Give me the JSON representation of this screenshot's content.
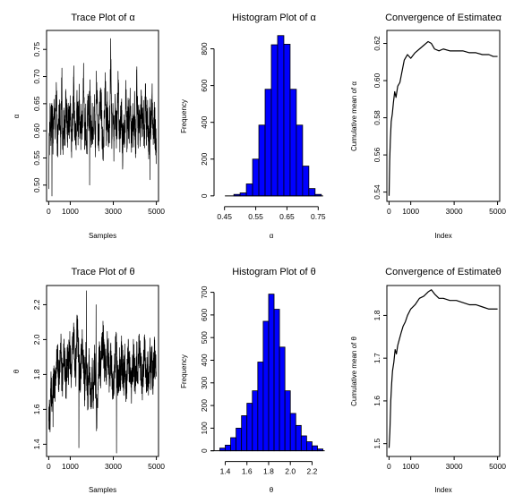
{
  "figure": {
    "layout": "2x3 grid of MCMC diagnostic plots"
  },
  "chart_data": [
    {
      "id": "trace-alpha",
      "type": "line",
      "title": "Trace Plot of α",
      "xlabel": "Samples",
      "ylabel": "α",
      "xlim": [
        -100,
        5100
      ],
      "ylim": [
        0.47,
        0.785
      ],
      "xticks": [
        0,
        1000,
        3000,
        5000
      ],
      "xtick_labels": [
        "0",
        "1000",
        "3000",
        "5000"
      ],
      "yticks": [
        0.5,
        0.55,
        0.6,
        0.65,
        0.7,
        0.75
      ],
      "ytick_labels": [
        "0.50",
        "0.55",
        "0.60",
        "0.65",
        "0.70",
        "0.75"
      ],
      "series": [
        {
          "color": "#000000",
          "x_start": 1,
          "x_end": 5000,
          "values": [
            0.53,
            0.62,
            0.6,
            0.66,
            0.58,
            0.63,
            0.6,
            0.68,
            0.57,
            0.61,
            0.64,
            0.59,
            0.7,
            0.56,
            0.62,
            0.6,
            0.67,
            0.58,
            0.63,
            0.61,
            0.65,
            0.56,
            0.62,
            0.69,
            0.6,
            0.58,
            0.64,
            0.61,
            0.66,
            0.57,
            0.63,
            0.6,
            0.72,
            0.59,
            0.62,
            0.55,
            0.65,
            0.61,
            0.67,
            0.58,
            0.62,
            0.6,
            0.64,
            0.57,
            0.7,
            0.61,
            0.59,
            0.63,
            0.66,
            0.6,
            0.56,
            0.62,
            0.68,
            0.6,
            0.64,
            0.58,
            0.61,
            0.73,
            0.6,
            0.63,
            0.57,
            0.65,
            0.6,
            0.62,
            0.69,
            0.58,
            0.61,
            0.64,
            0.56,
            0.62,
            0.6,
            0.67,
            0.59,
            0.63,
            0.61,
            0.66,
            0.58,
            0.62,
            0.6,
            0.64,
            0.57,
            0.7,
            0.6,
            0.62,
            0.59,
            0.65,
            0.61,
            0.63,
            0.58,
            0.67,
            0.6,
            0.62,
            0.56,
            0.64,
            0.61,
            0.68,
            0.59,
            0.62,
            0.6,
            0.57
          ],
          "extremes": [
            {
              "x": 150,
              "y": 0.48
            },
            {
              "x": 2880,
              "y": 0.77
            },
            {
              "x": 1900,
              "y": 0.5
            },
            {
              "x": 4700,
              "y": 0.51
            }
          ]
        }
      ]
    },
    {
      "id": "hist-alpha",
      "type": "bar",
      "title": "Histogram Plot of α",
      "xlabel": "α",
      "ylabel": "Frequency",
      "xlim": [
        0.428,
        0.772
      ],
      "ylim": [
        -30,
        900
      ],
      "xticks": [
        0.45,
        0.55,
        0.65,
        0.75
      ],
      "xtick_labels": [
        "0.45",
        "0.55",
        "0.65",
        "0.75"
      ],
      "yticks": [
        0,
        200,
        400,
        600,
        800
      ],
      "ytick_labels": [
        "0",
        "200",
        "400",
        "600",
        "800"
      ],
      "bin_width": 0.02,
      "bin_starts": [
        0.48,
        0.5,
        0.52,
        0.54,
        0.56,
        0.58,
        0.6,
        0.62,
        0.64,
        0.66,
        0.68,
        0.7,
        0.72,
        0.74
      ],
      "values": [
        8,
        16,
        65,
        200,
        385,
        580,
        822,
        872,
        825,
        580,
        385,
        162,
        40,
        8
      ],
      "bar_color": "#0000ff"
    },
    {
      "id": "conv-alpha",
      "type": "line",
      "title": "Convergence of Estimateα",
      "xlabel": "Index",
      "ylabel": "Cumulative mean of α",
      "xlim": [
        -100,
        5100
      ],
      "ylim": [
        0.535,
        0.627
      ],
      "xticks": [
        0,
        1000,
        3000,
        5000
      ],
      "xtick_labels": [
        "0",
        "1000",
        "3000",
        "5000"
      ],
      "yticks": [
        0.54,
        0.56,
        0.58,
        0.6,
        0.62
      ],
      "ytick_labels": [
        "0.54",
        "0.56",
        "0.58",
        "0.60",
        "0.62"
      ],
      "series": [
        {
          "color": "#000000",
          "x": [
            1,
            30,
            60,
            100,
            150,
            200,
            260,
            320,
            400,
            500,
            600,
            700,
            850,
            1000,
            1200,
            1400,
            1600,
            1800,
            1950,
            2100,
            2300,
            2500,
            2800,
            3100,
            3400,
            3700,
            4000,
            4300,
            4600,
            4800,
            5000
          ],
          "y": [
            0.538,
            0.557,
            0.568,
            0.578,
            0.582,
            0.588,
            0.594,
            0.591,
            0.597,
            0.599,
            0.605,
            0.611,
            0.614,
            0.612,
            0.615,
            0.617,
            0.619,
            0.621,
            0.62,
            0.617,
            0.616,
            0.617,
            0.616,
            0.616,
            0.616,
            0.615,
            0.615,
            0.614,
            0.614,
            0.613,
            0.613
          ]
        }
      ]
    },
    {
      "id": "trace-theta",
      "type": "line",
      "title": "Trace Plot of θ",
      "xlabel": "Samples",
      "ylabel": "θ",
      "xlim": [
        -100,
        5100
      ],
      "ylim": [
        1.33,
        2.31
      ],
      "xticks": [
        0,
        1000,
        3000,
        5000
      ],
      "xtick_labels": [
        "0",
        "1000",
        "3000",
        "5000"
      ],
      "yticks": [
        1.4,
        1.6,
        1.8,
        2.0,
        2.2
      ],
      "ytick_labels": [
        "1.4",
        "1.6",
        "1.8",
        "2.0",
        "2.2"
      ],
      "series": [
        {
          "color": "#000000",
          "x_start": 1,
          "x_end": 5000,
          "values": [
            1.6,
            1.52,
            1.72,
            1.65,
            1.8,
            1.75,
            1.7,
            1.84,
            1.9,
            1.78,
            1.86,
            1.95,
            1.8,
            1.75,
            1.92,
            1.85,
            1.7,
            1.88,
            1.82,
            1.98,
            1.9,
            1.76,
            1.94,
            2.05,
            1.88,
            1.82,
            2.1,
            1.95,
            1.85,
            1.78,
            1.92,
            2.0,
            1.86,
            1.72,
            1.9,
            1.8,
            1.68,
            1.85,
            1.75,
            1.62,
            1.82,
            1.7,
            1.88,
            1.76,
            1.55,
            1.72,
            1.84,
            1.9,
            1.78,
            1.96,
            2.02,
            1.85,
            1.92,
            1.8,
            1.98,
            1.88,
            1.76,
            1.9,
            1.84,
            1.72,
            1.8,
            1.88,
            1.95,
            1.82,
            1.7,
            1.86,
            1.78,
            1.92,
            1.84,
            1.75,
            1.9,
            1.68,
            1.82,
            1.95,
            1.86,
            1.78,
            1.7,
            1.84,
            1.9,
            1.8,
            1.74,
            1.88,
            1.82,
            1.95,
            1.9,
            1.84,
            1.76,
            1.8,
            1.92,
            1.86,
            1.78,
            1.84,
            1.72,
            1.9,
            1.82,
            1.86,
            1.78,
            1.92,
            1.84,
            1.8
          ],
          "extremes": [
            {
              "x": 1750,
              "y": 2.28
            },
            {
              "x": 1400,
              "y": 1.38
            },
            {
              "x": 3150,
              "y": 1.35
            },
            {
              "x": 200,
              "y": 1.5
            },
            {
              "x": 2200,
              "y": 2.2
            }
          ]
        }
      ]
    },
    {
      "id": "hist-theta",
      "type": "bar",
      "title": "Histogram Plot of θ",
      "xlabel": "θ",
      "ylabel": "Frequency",
      "xlim": [
        1.33,
        2.32
      ],
      "ylim": [
        -25,
        730
      ],
      "xticks": [
        1.4,
        1.6,
        1.8,
        2.0,
        2.2
      ],
      "xtick_labels": [
        "1.4",
        "1.6",
        "1.8",
        "2.0",
        "2.2"
      ],
      "yticks": [
        0,
        100,
        200,
        300,
        400,
        500,
        600,
        700
      ],
      "ytick_labels": [
        "0",
        "100",
        "200",
        "300",
        "400",
        "500",
        "600",
        "700"
      ],
      "bin_width": 0.05,
      "bin_starts": [
        1.35,
        1.4,
        1.45,
        1.5,
        1.55,
        1.6,
        1.65,
        1.7,
        1.75,
        1.8,
        1.85,
        1.9,
        1.95,
        2.0,
        2.05,
        2.1,
        2.15,
        2.2,
        2.25
      ],
      "values": [
        12,
        25,
        58,
        100,
        155,
        210,
        265,
        392,
        572,
        692,
        625,
        458,
        265,
        165,
        112,
        66,
        40,
        22,
        8
      ],
      "bar_color": "#0000ff"
    },
    {
      "id": "conv-theta",
      "type": "line",
      "title": "Convergence of Estimateθ",
      "xlabel": "Index",
      "ylabel": "Cumulative mean of θ",
      "xlim": [
        -100,
        5100
      ],
      "ylim": [
        1.47,
        1.87
      ],
      "xticks": [
        0,
        1000,
        3000,
        5000
      ],
      "xtick_labels": [
        "0",
        "1000",
        "3000",
        "5000"
      ],
      "yticks": [
        1.5,
        1.6,
        1.7,
        1.8
      ],
      "ytick_labels": [
        "1.5",
        "1.6",
        "1.7",
        "1.8"
      ],
      "series": [
        {
          "color": "#000000",
          "x": [
            1,
            40,
            80,
            120,
            160,
            220,
            280,
            340,
            400,
            480,
            560,
            650,
            750,
            850,
            1000,
            1200,
            1400,
            1600,
            1800,
            1950,
            2100,
            2300,
            2500,
            2800,
            3100,
            3400,
            3700,
            4000,
            4300,
            4600,
            4800,
            5000
          ],
          "y": [
            1.49,
            1.53,
            1.6,
            1.64,
            1.67,
            1.69,
            1.72,
            1.71,
            1.73,
            1.745,
            1.76,
            1.775,
            1.785,
            1.8,
            1.815,
            1.825,
            1.84,
            1.845,
            1.855,
            1.86,
            1.85,
            1.84,
            1.84,
            1.835,
            1.835,
            1.83,
            1.825,
            1.825,
            1.82,
            1.815,
            1.815,
            1.815
          ]
        }
      ]
    }
  ]
}
